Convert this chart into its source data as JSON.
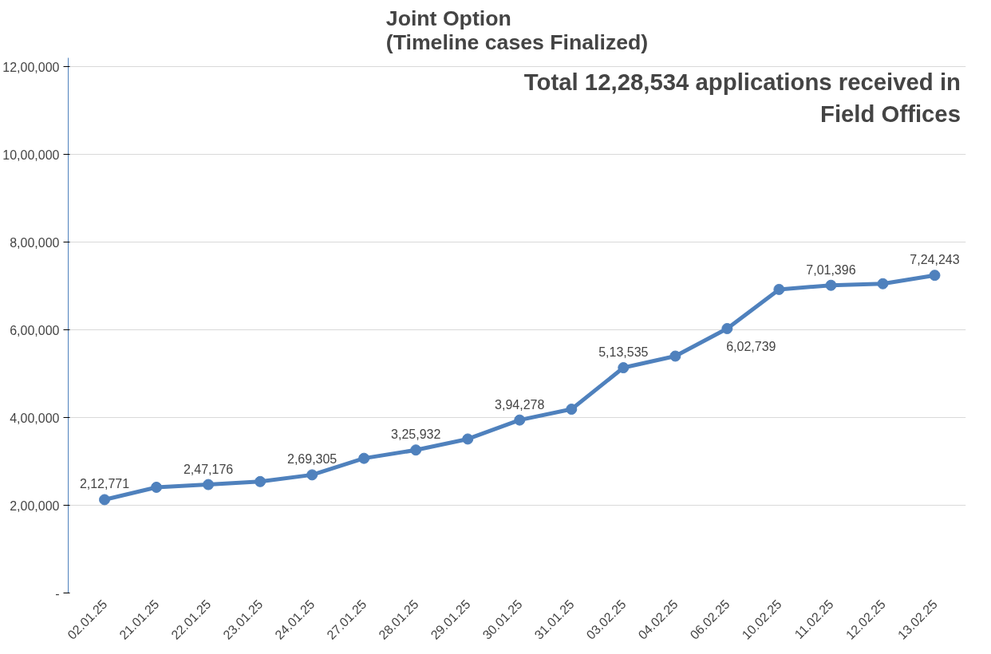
{
  "chart_data": {
    "type": "line",
    "title": "Joint Option\n(Timeline cases Finalized)",
    "categories": [
      "02.01.25",
      "21.01.25",
      "22.01.25",
      "23.01.25",
      "24.01.25",
      "27.01.25",
      "28.01.25",
      "29.01.25",
      "30.01.25",
      "31.01.25",
      "03.02.25",
      "04.02.25",
      "06.02.25",
      "10.02.25",
      "11.02.25",
      "12.02.25",
      "13.02.25"
    ],
    "series": [
      {
        "color": "#4f81bd",
        "values": [
          212771,
          241000,
          247176,
          254000,
          269305,
          307000,
          325932,
          351000,
          394278,
          419000,
          513535,
          540000,
          602739,
          692000,
          701396,
          705000,
          724243
        ],
        "value_labels": [
          "2,12,771",
          null,
          "2,47,176",
          null,
          "2,69,305",
          null,
          "3,25,932",
          null,
          "3,94,278",
          null,
          "5,13,535",
          null,
          "6,02,739",
          null,
          "7,01,396",
          null,
          "7,24,243"
        ]
      }
    ],
    "ylim": [
      0,
      1220000
    ],
    "yticks": [
      {
        "value": 0,
        "label": "-"
      },
      {
        "value": 200000,
        "label": "2,00,000"
      },
      {
        "value": 400000,
        "label": "4,00,000"
      },
      {
        "value": 600000,
        "label": "6,00,000"
      },
      {
        "value": 800000,
        "label": "8,00,000"
      },
      {
        "value": 1000000,
        "label": "10,00,000"
      },
      {
        "value": 1200000,
        "label": "12,00,000"
      }
    ],
    "annotations": [
      "Total 12,28,534 applications received in Field Offices"
    ],
    "grid": "y",
    "marker": "circle",
    "line_style": "solid"
  }
}
